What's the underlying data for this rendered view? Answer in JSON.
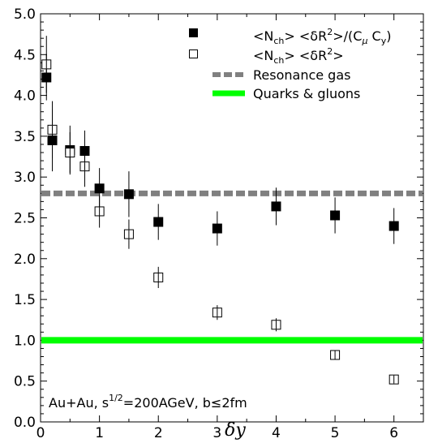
{
  "chart_data": {
    "type": "scatter",
    "title": "",
    "xlabel": "δy",
    "ylabel": "",
    "xlim": [
      0,
      6.5
    ],
    "ylim": [
      0,
      5
    ],
    "xticks": [
      "0",
      "1",
      "2",
      "3",
      "4",
      "5",
      "6"
    ],
    "yticks": [
      "0.0",
      "0.5",
      "1.0",
      "1.5",
      "2.0",
      "2.5",
      "3.0",
      "3.5",
      "4.0",
      "4.5",
      "5.0"
    ],
    "grid": false,
    "legend_position": "top-right",
    "series": [
      {
        "name": "<Nch> <δR²>/(Cμ Cy)",
        "marker": "filled-square",
        "color": "#000000",
        "x": [
          0.1,
          0.2,
          0.5,
          0.75,
          1.0,
          1.5,
          2.0,
          3.0,
          4.0,
          5.0,
          6.0
        ],
        "y": [
          4.22,
          3.45,
          3.33,
          3.32,
          2.86,
          2.79,
          2.45,
          2.37,
          2.64,
          2.53,
          2.4
        ],
        "err": [
          0.28,
          0.38,
          0.3,
          0.25,
          0.25,
          0.28,
          0.22,
          0.21,
          0.23,
          0.22,
          0.22
        ]
      },
      {
        "name": "<Nch> <δR²>",
        "marker": "open-square",
        "color": "#000000",
        "x": [
          0.1,
          0.2,
          0.5,
          0.75,
          1.0,
          1.5,
          2.0,
          3.0,
          4.0,
          5.0,
          6.0
        ],
        "y": [
          4.38,
          3.58,
          3.3,
          3.13,
          2.58,
          2.3,
          1.77,
          1.34,
          1.19,
          0.82,
          0.52
        ],
        "err": [
          0.35,
          0.35,
          0.25,
          0.25,
          0.2,
          0.18,
          0.13,
          0.09,
          0.08,
          0.05,
          0.04
        ]
      }
    ],
    "reference_lines": [
      {
        "name": "Resonance gas",
        "y": 2.8,
        "color": "#808080",
        "style": "dashed"
      },
      {
        "name": "Quarks & gluons",
        "y": 1.0,
        "color": "#00ff00",
        "style": "solid"
      }
    ],
    "annotation": {
      "prefix": "Au+Au, s",
      "superscript": "1/2",
      "suffix": "=200AGeV, b≤2fm"
    },
    "legend": {
      "entry1_parts": [
        "<N",
        "ch",
        "> <δR",
        "2",
        ">/(C",
        "μ",
        " C",
        "y",
        ")"
      ],
      "entry2_parts": [
        "<N",
        "ch",
        "> <δR",
        "2",
        ">"
      ],
      "entry3": "Resonance gas",
      "entry4": "Quarks & gluons"
    }
  }
}
